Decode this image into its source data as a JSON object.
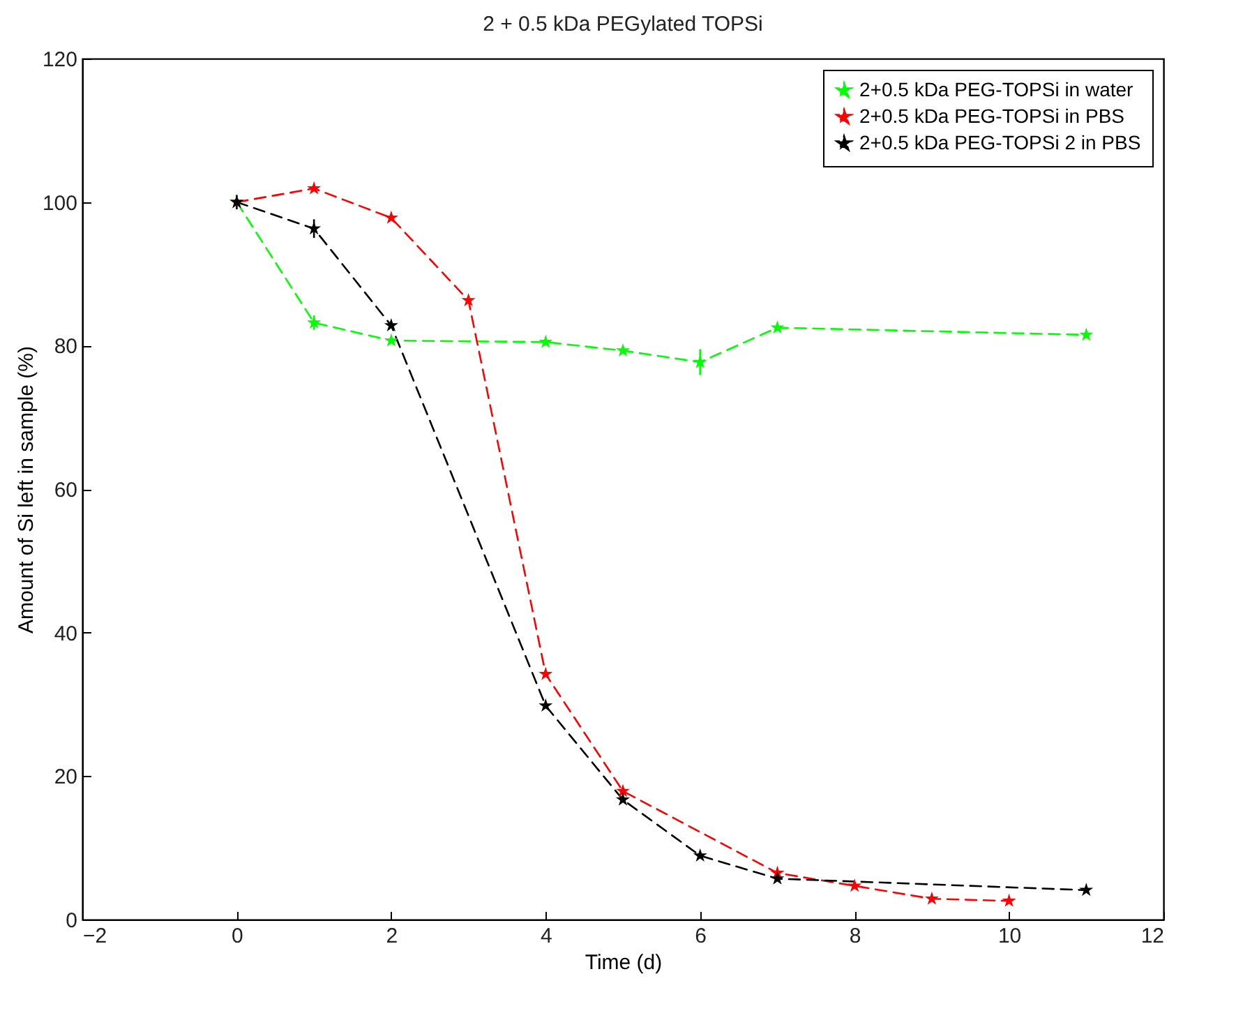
{
  "chart_data": {
    "type": "line",
    "title": "2 + 0.5 kDa PEGylated TOPSi",
    "xlabel": "Time (d)",
    "ylabel": "Amount of Si left in sample (%)",
    "xlim": [
      -2,
      12
    ],
    "xticks": [
      -2,
      0,
      2,
      4,
      6,
      8,
      10,
      12
    ],
    "ylim": [
      0,
      120
    ],
    "yticks": [
      0,
      20,
      40,
      60,
      80,
      100,
      120
    ],
    "grid": false,
    "legend": "top right",
    "marker": "star",
    "line_style": "dashed",
    "series": [
      {
        "name": "2+0.5 kDa PEG-TOPSi in water",
        "color": "#00ff00",
        "x": [
          0,
          1,
          2,
          4,
          5,
          6,
          7,
          11
        ],
        "values": [
          100,
          83.2,
          80.7,
          80.5,
          79.3,
          77.7,
          82.5,
          81.5
        ],
        "errors": [
          null,
          1,
          null,
          null,
          null,
          1.8,
          null,
          null
        ]
      },
      {
        "name": "2+0.5 kDa PEG-TOPSi in PBS",
        "color": "#ff0000",
        "x": [
          0,
          1,
          2,
          3,
          4,
          5,
          7,
          8,
          9,
          10
        ],
        "values": [
          100,
          101.9,
          97.8,
          86.3,
          34.2,
          17.9,
          6.5,
          4.7,
          2.9,
          2.6
        ]
      },
      {
        "name": "2+0.5 kDa PEG-TOPSi 2 in PBS",
        "color": "#000000",
        "x": [
          0,
          1,
          2,
          4,
          5,
          6,
          7,
          11
        ],
        "values": [
          100,
          96.3,
          82.8,
          29.8,
          16.7,
          8.9,
          5.7,
          4.1
        ],
        "errors": [
          1,
          1.3,
          null,
          null,
          null,
          null,
          null,
          null
        ]
      }
    ]
  }
}
